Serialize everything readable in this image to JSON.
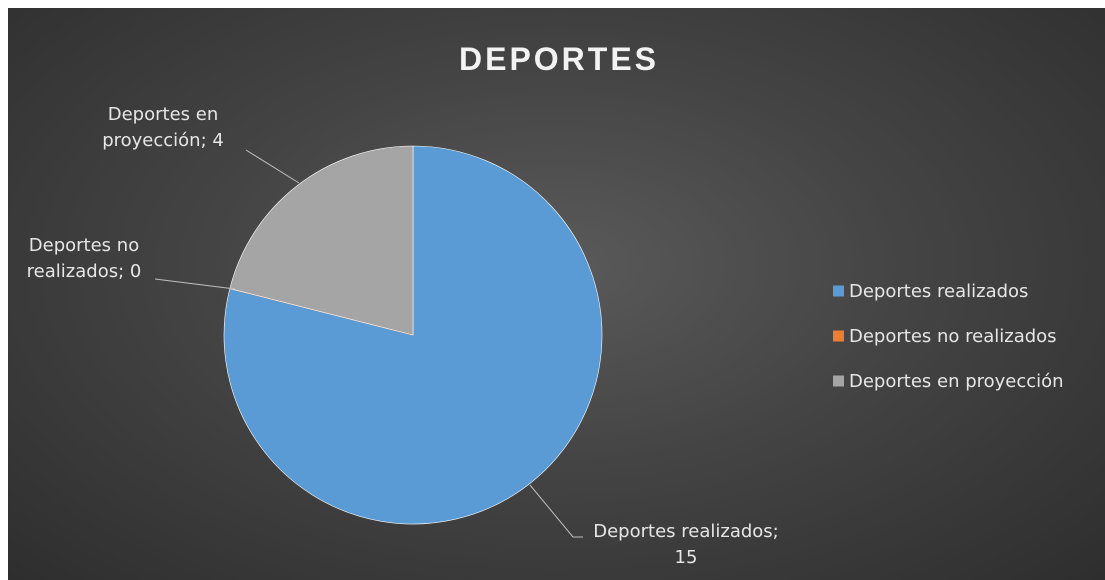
{
  "chart_data": {
    "type": "pie",
    "title": "DEPORTES",
    "categories": [
      "Deportes realizados",
      "Deportes no realizados",
      "Deportes en proyección"
    ],
    "values": [
      15,
      0,
      4
    ],
    "colors": [
      "#5b9bd5",
      "#ed7d31",
      "#a5a5a5"
    ],
    "legend_position": "right",
    "data_labels": [
      [
        "Deportes realizados;",
        "15"
      ],
      [
        "Deportes no",
        "realizados; 0"
      ],
      [
        "Deportes en",
        "proyección; 4"
      ]
    ]
  }
}
